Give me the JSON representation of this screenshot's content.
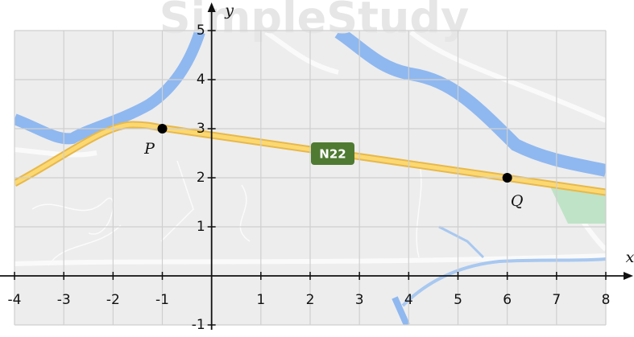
{
  "chart_data": {
    "type": "scatter",
    "watermark": "SimpleStudy",
    "x_label": "x",
    "y_label": "y",
    "xlim": [
      -4,
      8
    ],
    "ylim": [
      -1,
      5
    ],
    "xticks": [
      -4,
      -3,
      -2,
      -1,
      1,
      2,
      3,
      4,
      5,
      6,
      7,
      8
    ],
    "yticks": [
      -1,
      1,
      2,
      3,
      4,
      5
    ],
    "grid": true,
    "color": "#000000",
    "points": [
      {
        "label": "P",
        "x": -1,
        "y": 3
      },
      {
        "label": "Q",
        "x": 6,
        "y": 2
      }
    ],
    "road_label": "N22"
  }
}
